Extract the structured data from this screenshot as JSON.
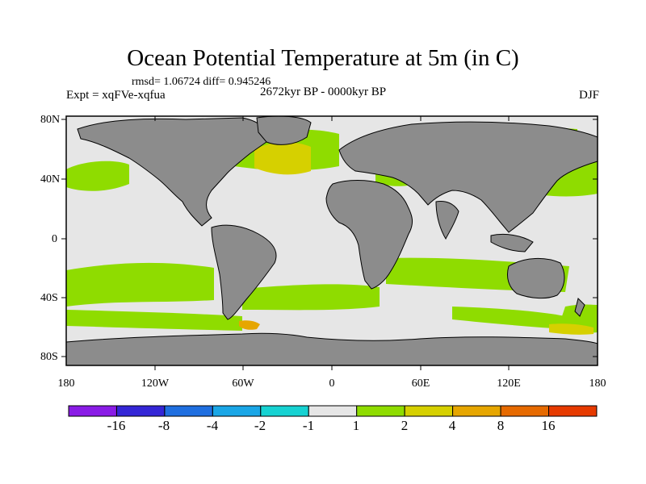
{
  "title": "Ocean Potential Temperature at 5m (in C)",
  "stats_line": "rmsd= 1.06724 diff= 0.945246",
  "experiment_label": "Expt = xqFVe-xqfua",
  "period_label": "2672kyr BP - 0000kyr BP",
  "season_label": "DJF",
  "lat_labels": [
    "80N",
    "40N",
    "0",
    "40S",
    "80S"
  ],
  "lon_labels": [
    "180",
    "120W",
    "60W",
    "0",
    "60E",
    "120E",
    "180"
  ],
  "colorbar": {
    "labels": [
      "-16",
      "-8",
      "-4",
      "-2",
      "-1",
      "1",
      "2",
      "4",
      "8",
      "16"
    ],
    "colors": [
      "#8a1ce6",
      "#3426d6",
      "#1f6fe0",
      "#1aa6e6",
      "#16d2d2",
      "#e6e6e6",
      "#8fdc00",
      "#d6d000",
      "#e6a600",
      "#e66a00",
      "#e63a00"
    ]
  },
  "colors": {
    "land": "#8c8c8c",
    "ocean_neutral": "#e6e6e6",
    "warm_1_2": "#8fdc00",
    "warm_2_4": "#d6d000",
    "warm_4_8": "#e6a600"
  }
}
